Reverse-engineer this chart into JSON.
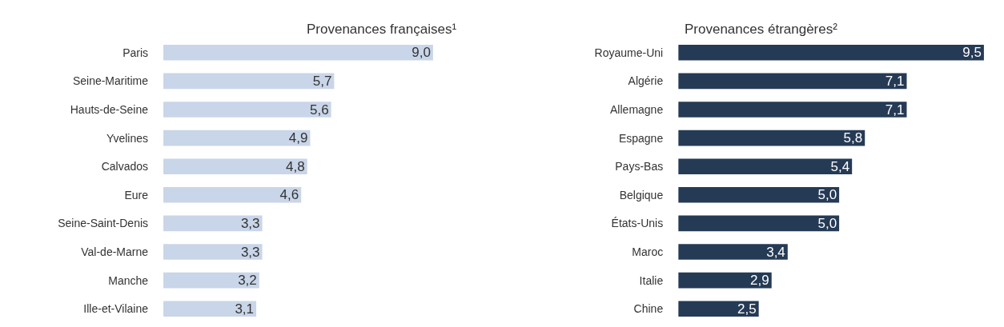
{
  "chart_data": [
    {
      "type": "bar",
      "orientation": "horizontal",
      "title": "Provenances françaises¹",
      "categories": [
        "Paris",
        "Seine-Maritime",
        "Hauts-de-Seine",
        "Yvelines",
        "Calvados",
        "Eure",
        "Seine-Saint-Denis",
        "Val-de-Marne",
        "Manche",
        "Ille-et-Vilaine"
      ],
      "series": [
        {
          "color": "#c9d5e8",
          "values": [
            9.0,
            5.7,
            5.6,
            4.9,
            4.8,
            4.6,
            3.3,
            3.3,
            3.2,
            3.1
          ],
          "value_labels": [
            "9,0",
            "5,7",
            "5,6",
            "4,9",
            "4,8",
            "4,6",
            "3,3",
            "3,3",
            "3,2",
            "3,1"
          ]
        }
      ],
      "tick_labels": "y"
    },
    {
      "type": "bar",
      "orientation": "horizontal",
      "title": "Provenances étrangères²",
      "categories": [
        "Royaume-Uni",
        "Algérie",
        "Allemagne",
        "Espagne",
        "Pays-Bas",
        "Belgique",
        "États-Unis",
        "Maroc",
        "Italie",
        "Chine"
      ],
      "series": [
        {
          "color": "#253a55",
          "values": [
            9.5,
            7.1,
            7.1,
            5.8,
            5.4,
            5.0,
            5.0,
            3.4,
            2.9,
            2.5
          ],
          "value_labels": [
            "9,5",
            "7,1",
            "7,1",
            "5,8",
            "5,4",
            "5,0",
            "5,0",
            "3,4",
            "2,9",
            "2,5"
          ]
        }
      ],
      "tick_labels": "y"
    }
  ]
}
